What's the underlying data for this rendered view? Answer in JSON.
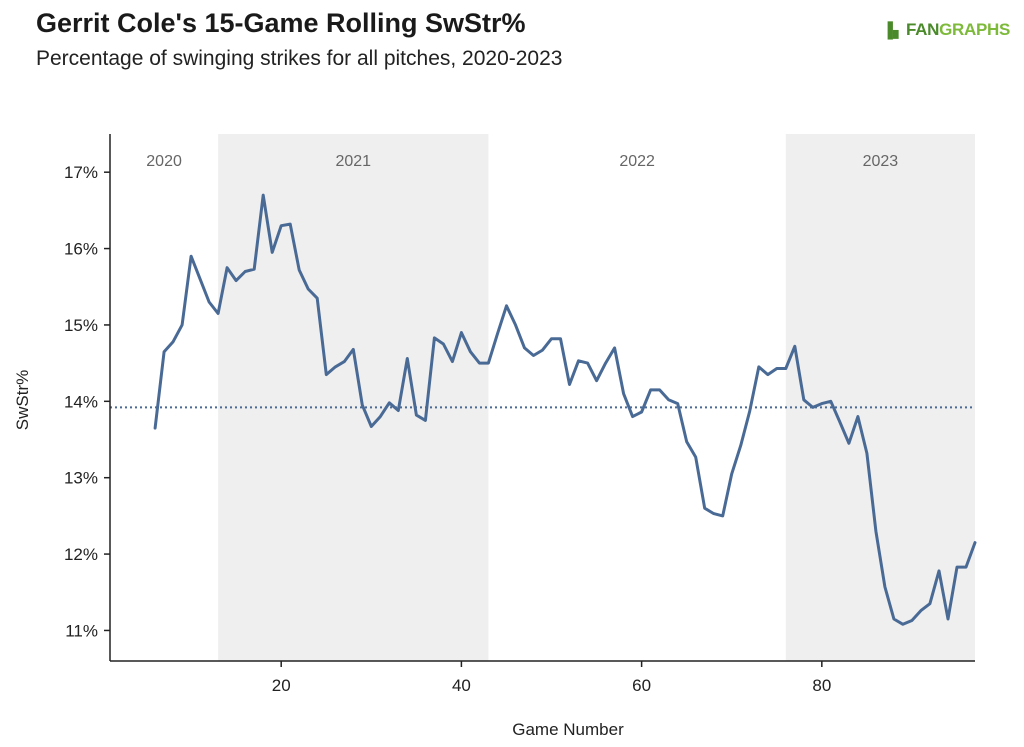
{
  "header": {
    "title": "Gerrit Cole's 15-Game Rolling SwStr%",
    "subtitle": "Percentage of swinging strikes for all pitches, 2020-2023",
    "logo_fan": "FAN",
    "logo_graphs": "GRAPHS",
    "logo_icon": "fangraphs-logo-icon"
  },
  "chart_data": {
    "type": "line",
    "title": "Gerrit Cole's 15-Game Rolling SwStr%",
    "subtitle": "Percentage of swinging strikes for all pitches, 2020-2023",
    "xlabel": "Game Number",
    "ylabel": "SwStr%",
    "xlim": [
      1,
      97
    ],
    "ylim": [
      10.6,
      17.5
    ],
    "x_ticks": [
      20,
      40,
      60,
      80
    ],
    "y_ticks": [
      11,
      12,
      13,
      14,
      15,
      16,
      17
    ],
    "y_tick_labels": [
      "11%",
      "12%",
      "13%",
      "14%",
      "15%",
      "16%",
      "17%"
    ],
    "line_color": "#4a6a96",
    "grid": false,
    "reference_line": {
      "value": 13.92,
      "style": "dotted",
      "color": "#4a6a96"
    },
    "seasons": [
      {
        "label": "2020",
        "start": 1,
        "end": 13,
        "shaded": false
      },
      {
        "label": "2021",
        "start": 13,
        "end": 43,
        "shaded": true
      },
      {
        "label": "2022",
        "start": 43,
        "end": 76,
        "shaded": false
      },
      {
        "label": "2023",
        "start": 76,
        "end": 97,
        "shaded": true
      }
    ],
    "shade_color": "#efefef",
    "series": [
      {
        "x": [
          6,
          7,
          8,
          9,
          10,
          11,
          12,
          13,
          14,
          15,
          16,
          17,
          18,
          19,
          20,
          21,
          22,
          23,
          24,
          25,
          26,
          27,
          28,
          29,
          30,
          31,
          32,
          33,
          34,
          35,
          36,
          37,
          38,
          39,
          40,
          41,
          42,
          43,
          44,
          45,
          46,
          47,
          48,
          49,
          50,
          51,
          52,
          53,
          54,
          55,
          56,
          57,
          58,
          59,
          60,
          61,
          62,
          63,
          64,
          65,
          66,
          67,
          68,
          69,
          70,
          71,
          72,
          73,
          74,
          75,
          76,
          77,
          78,
          79,
          80,
          81,
          82,
          83,
          84,
          85,
          86,
          87,
          88,
          89,
          90,
          91,
          92,
          93,
          94,
          95,
          96,
          97
        ],
        "values": [
          13.65,
          14.65,
          14.78,
          15.0,
          15.9,
          15.6,
          15.3,
          15.15,
          15.75,
          15.58,
          15.7,
          15.73,
          16.7,
          15.95,
          16.3,
          16.32,
          15.72,
          15.47,
          15.35,
          14.35,
          14.45,
          14.52,
          14.68,
          13.95,
          13.67,
          13.8,
          13.98,
          13.88,
          14.56,
          13.82,
          13.75,
          14.83,
          14.75,
          14.52,
          14.9,
          14.65,
          14.5,
          14.5,
          14.88,
          15.25,
          15.0,
          14.7,
          14.6,
          14.67,
          14.82,
          14.82,
          14.22,
          14.53,
          14.5,
          14.27,
          14.5,
          14.7,
          14.1,
          13.8,
          13.86,
          14.15,
          14.15,
          14.02,
          13.97,
          13.47,
          13.27,
          12.6,
          12.53,
          12.5,
          13.05,
          13.42,
          13.87,
          14.45,
          14.35,
          14.43,
          14.43,
          14.72,
          14.02,
          13.92,
          13.97,
          14.0,
          13.73,
          13.45,
          13.8,
          13.32,
          12.3,
          11.57,
          11.15,
          11.08,
          11.13,
          11.26,
          11.35,
          11.78,
          11.15,
          11.83,
          11.83,
          12.15
        ]
      }
    ]
  }
}
